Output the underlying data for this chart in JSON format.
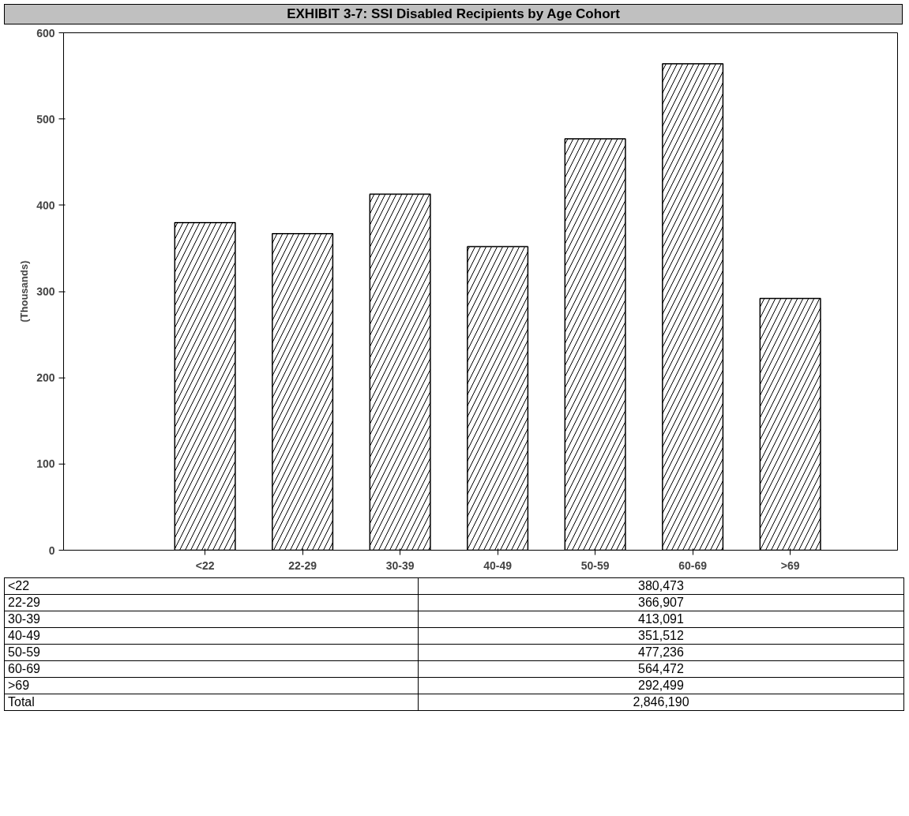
{
  "chart_data": {
    "type": "bar",
    "title": "EXHIBIT 3-7: SSI Disabled Recipients by Age Cohort",
    "ylabel": "(Thousands)",
    "categories": [
      "<22",
      "22-29",
      "30-39",
      "40-49",
      "50-59",
      "60-69",
      ">69"
    ],
    "values": [
      380,
      367,
      413,
      352,
      477,
      564,
      292
    ],
    "color": "#000000",
    "ylim": [
      0,
      600
    ],
    "yticks": [
      0,
      100,
      200,
      300,
      400,
      500,
      600
    ],
    "grid": false,
    "annotations": [
      "<22",
      "380,473",
      "22-29",
      "366,907",
      "30-39",
      "413,091",
      "40-49",
      "351,512",
      "50-59",
      "477,236",
      "60-69",
      "564,472",
      ">69",
      "292,499",
      "Total",
      "2,846,190"
    ]
  }
}
